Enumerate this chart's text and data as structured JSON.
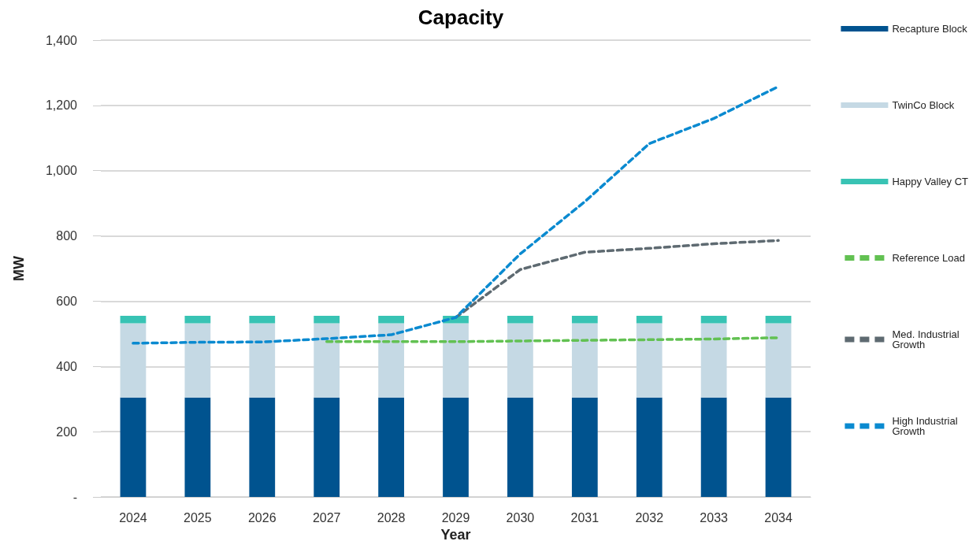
{
  "chart_data": {
    "type": "bar",
    "title": "Capacity",
    "xlabel": "Year",
    "ylabel": "MW",
    "categories": [
      "2024",
      "2025",
      "2026",
      "2027",
      "2028",
      "2029",
      "2030",
      "2031",
      "2032",
      "2033",
      "2034"
    ],
    "stacked": true,
    "grid": "y",
    "legend": "right",
    "line_style": "dashed",
    "marker": "none",
    "ylim": [
      0,
      1400
    ],
    "yticks": [
      {
        "value": 0,
        "label": "-"
      },
      200,
      400,
      600,
      800,
      {
        "value": 1000,
        "label": "1,000"
      },
      {
        "value": 1200,
        "label": "1,200"
      },
      {
        "value": 1400,
        "label": "1,400"
      }
    ],
    "series": [
      {
        "name": "Recapture Block",
        "color": "#00538f",
        "values": [
          305,
          305,
          305,
          305,
          305,
          305,
          305,
          305,
          305,
          305,
          305
        ]
      },
      {
        "name": "TwinCo Block",
        "color": "#c5d9e4",
        "values": [
          227,
          227,
          227,
          227,
          227,
          227,
          227,
          227,
          227,
          227,
          227
        ]
      },
      {
        "name": "Happy Valley CT",
        "color": "#38c3b4",
        "values": [
          23,
          23,
          23,
          23,
          23,
          23,
          23,
          23,
          23,
          23,
          23
        ]
      },
      {
        "name": "Reference Load",
        "type": "line",
        "color": "#62c152",
        "values": [
          null,
          null,
          null,
          476,
          476,
          476,
          478,
          480,
          482,
          484,
          488
        ]
      },
      {
        "name": "Med. Industrial Growth",
        "type": "line",
        "color": "#5e6a71",
        "values": [
          null,
          null,
          null,
          null,
          null,
          550,
          697,
          750,
          762,
          776,
          786
        ]
      },
      {
        "name": "High Industrial Growth",
        "type": "line",
        "color": "#0a8ad0",
        "values": [
          471,
          474,
          475,
          485,
          497,
          550,
          745,
          905,
          1083,
          1160,
          1258
        ]
      }
    ]
  }
}
